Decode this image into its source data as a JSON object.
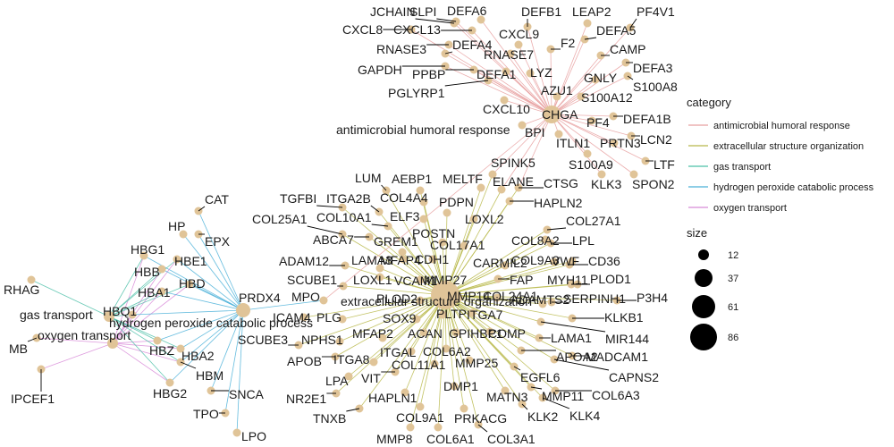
{
  "categories": {
    "amh": {
      "name": "antimicrobial humoral response",
      "color": "#e8a0a0"
    },
    "eso": {
      "name": "extracellular structure organization",
      "color": "#b8b84a"
    },
    "gas": {
      "name": "gas transport",
      "color": "#4cc0a8"
    },
    "h2o2": {
      "name": "hydrogen peroxide catabolic process",
      "color": "#4ab0d8"
    },
    "oxy": {
      "name": "oxygen transport",
      "color": "#d88ad8"
    }
  },
  "legend": {
    "category_title": "category",
    "size_title": "size",
    "size_values": [
      "12",
      "37",
      "61",
      "86"
    ]
  },
  "colors": {
    "node": "#e0c498",
    "label_line": "#000000"
  },
  "hubs": [
    {
      "id": "amh",
      "label": "antimicrobial humoral response",
      "size": 37
    },
    {
      "id": "eso",
      "label": "extracellular structure organization",
      "size": 86
    },
    {
      "id": "h2o2",
      "label": "hydrogen peroxide catabolic process",
      "size": 20
    },
    {
      "id": "gas",
      "label": "gas transport",
      "size": 12
    },
    {
      "id": "oxy",
      "label": "oxygen transport",
      "size": 12
    }
  ],
  "genes": [
    {
      "label": "JCHAIN",
      "cats": [
        "amh"
      ]
    },
    {
      "label": "SLPI",
      "cats": [
        "amh"
      ]
    },
    {
      "label": "DEFA6",
      "cats": [
        "amh"
      ]
    },
    {
      "label": "DEFB1",
      "cats": [
        "amh"
      ]
    },
    {
      "label": "LEAP2",
      "cats": [
        "amh"
      ]
    },
    {
      "label": "PF4V1",
      "cats": [
        "amh"
      ]
    },
    {
      "label": "CXCL8",
      "cats": [
        "amh"
      ]
    },
    {
      "label": "CXCL13",
      "cats": [
        "amh"
      ]
    },
    {
      "label": "CXCL9",
      "cats": [
        "amh"
      ]
    },
    {
      "label": "DEFA5",
      "cats": [
        "amh"
      ]
    },
    {
      "label": "RNASE3",
      "cats": [
        "amh"
      ]
    },
    {
      "label": "DEFA4",
      "cats": [
        "amh"
      ]
    },
    {
      "label": "F2",
      "cats": [
        "amh"
      ]
    },
    {
      "label": "CAMP",
      "cats": [
        "amh"
      ]
    },
    {
      "label": "RNASE7",
      "cats": [
        "amh"
      ]
    },
    {
      "label": "GAPDH",
      "cats": [
        "amh"
      ]
    },
    {
      "label": "PPBP",
      "cats": [
        "amh"
      ]
    },
    {
      "label": "DEFA1",
      "cats": [
        "amh"
      ]
    },
    {
      "label": "LYZ",
      "cats": [
        "amh"
      ]
    },
    {
      "label": "GNLY",
      "cats": [
        "amh"
      ]
    },
    {
      "label": "DEFA3",
      "cats": [
        "amh"
      ]
    },
    {
      "label": "PGLYRP1",
      "cats": [
        "amh"
      ]
    },
    {
      "label": "AZU1",
      "cats": [
        "amh"
      ]
    },
    {
      "label": "S100A8",
      "cats": [
        "amh"
      ]
    },
    {
      "label": "S100A12",
      "cats": [
        "amh"
      ]
    },
    {
      "label": "CXCL10",
      "cats": [
        "amh"
      ]
    },
    {
      "label": "CHGA",
      "cats": [
        "amh"
      ]
    },
    {
      "label": "DEFA1B",
      "cats": [
        "amh"
      ]
    },
    {
      "label": "PF4",
      "cats": [
        "amh"
      ]
    },
    {
      "label": "BPI",
      "cats": [
        "amh"
      ]
    },
    {
      "label": "LCN2",
      "cats": [
        "amh"
      ]
    },
    {
      "label": "ITLN1",
      "cats": [
        "amh"
      ]
    },
    {
      "label": "PRTN3",
      "cats": [
        "amh"
      ]
    },
    {
      "label": "S100A9",
      "cats": [
        "amh"
      ]
    },
    {
      "label": "LTF",
      "cats": [
        "amh"
      ]
    },
    {
      "label": "KLK3",
      "cats": [
        "amh"
      ]
    },
    {
      "label": "SPON2",
      "cats": [
        "amh"
      ]
    },
    {
      "label": "SPINK5",
      "cats": [
        "amh",
        "eso"
      ]
    },
    {
      "label": "MELTF",
      "cats": [
        "eso"
      ]
    },
    {
      "label": "ELANE",
      "cats": [
        "amh",
        "eso"
      ]
    },
    {
      "label": "CTSG",
      "cats": [
        "amh",
        "eso"
      ]
    },
    {
      "label": "HAPLN2",
      "cats": [
        "eso"
      ]
    },
    {
      "label": "LUM",
      "cats": [
        "eso"
      ]
    },
    {
      "label": "AEBP1",
      "cats": [
        "eso"
      ]
    },
    {
      "label": "TGFBI",
      "cats": [
        "eso"
      ]
    },
    {
      "label": "ITGA2B",
      "cats": [
        "eso"
      ]
    },
    {
      "label": "COL4A4",
      "cats": [
        "eso"
      ]
    },
    {
      "label": "PDPN",
      "cats": [
        "eso"
      ]
    },
    {
      "label": "LOXL2",
      "cats": [
        "eso"
      ]
    },
    {
      "label": "COL27A1",
      "cats": [
        "eso"
      ]
    },
    {
      "label": "COL25A1",
      "cats": [
        "eso"
      ]
    },
    {
      "label": "COL10A1",
      "cats": [
        "eso"
      ]
    },
    {
      "label": "ELF3",
      "cats": [
        "eso"
      ]
    },
    {
      "label": "POSTN",
      "cats": [
        "eso"
      ]
    },
    {
      "label": "ABCA7",
      "cats": [
        "eso"
      ]
    },
    {
      "label": "GREM1",
      "cats": [
        "eso"
      ]
    },
    {
      "label": "COL17A1",
      "cats": [
        "eso"
      ]
    },
    {
      "label": "COL8A2",
      "cats": [
        "eso"
      ]
    },
    {
      "label": "LPL",
      "cats": [
        "eso"
      ]
    },
    {
      "label": "ADAM12",
      "cats": [
        "eso"
      ]
    },
    {
      "label": "LAMA3",
      "cats": [
        "eso"
      ]
    },
    {
      "label": "MFAP4",
      "cats": [
        "eso"
      ]
    },
    {
      "label": "CDH1",
      "cats": [
        "eso"
      ]
    },
    {
      "label": "CARMIL2",
      "cats": [
        "eso"
      ]
    },
    {
      "label": "COL9A3",
      "cats": [
        "eso"
      ]
    },
    {
      "label": "VWF",
      "cats": [
        "eso"
      ]
    },
    {
      "label": "CD36",
      "cats": [
        "eso"
      ]
    },
    {
      "label": "SCUBE1",
      "cats": [
        "eso"
      ]
    },
    {
      "label": "LOXL1",
      "cats": [
        "eso"
      ]
    },
    {
      "label": "VCAM1",
      "cats": [
        "eso"
      ]
    },
    {
      "label": "MMP27",
      "cats": [
        "eso"
      ]
    },
    {
      "label": "FAP",
      "cats": [
        "eso"
      ]
    },
    {
      "label": "MYH11",
      "cats": [
        "eso"
      ]
    },
    {
      "label": "PLOD1",
      "cats": [
        "eso"
      ]
    },
    {
      "label": "PRDX4",
      "cats": [
        "h2o2"
      ]
    },
    {
      "label": "MPO",
      "cats": [
        "amh",
        "h2o2"
      ]
    },
    {
      "label": "PLOD2",
      "cats": [
        "eso"
      ]
    },
    {
      "label": "MMP14",
      "cats": [
        "eso"
      ]
    },
    {
      "label": "COL24A1",
      "cats": [
        "eso"
      ]
    },
    {
      "label": "ADAMTS2",
      "cats": [
        "eso"
      ]
    },
    {
      "label": "SERPINH1",
      "cats": [
        "eso"
      ]
    },
    {
      "label": "P3H4",
      "cats": [
        "eso"
      ]
    },
    {
      "label": "ICAM4",
      "cats": [
        "eso"
      ]
    },
    {
      "label": "PLG",
      "cats": [
        "eso"
      ]
    },
    {
      "label": "SOX9",
      "cats": [
        "eso"
      ]
    },
    {
      "label": "PLTP",
      "cats": [
        "eso"
      ]
    },
    {
      "label": "ITGA7",
      "cats": [
        "eso"
      ]
    },
    {
      "label": "KLKB1",
      "cats": [
        "eso"
      ]
    },
    {
      "label": "MIR144",
      "cats": [
        "eso"
      ]
    },
    {
      "label": "SCUBE3",
      "cats": [
        "eso"
      ]
    },
    {
      "label": "NPHS1",
      "cats": [
        "eso"
      ]
    },
    {
      "label": "MFAP2",
      "cats": [
        "eso"
      ]
    },
    {
      "label": "ACAN",
      "cats": [
        "eso"
      ]
    },
    {
      "label": "GPIHBP1",
      "cats": [
        "eso"
      ]
    },
    {
      "label": "COMP",
      "cats": [
        "eso"
      ]
    },
    {
      "label": "LAMA1",
      "cats": [
        "eso"
      ]
    },
    {
      "label": "APOB",
      "cats": [
        "eso"
      ]
    },
    {
      "label": "ITGA8",
      "cats": [
        "eso"
      ]
    },
    {
      "label": "COL6A2",
      "cats": [
        "eso"
      ]
    },
    {
      "label": "ITGAL",
      "cats": [
        "eso"
      ]
    },
    {
      "label": "APOA2",
      "cats": [
        "eso"
      ]
    },
    {
      "label": "MADCAM1",
      "cats": [
        "eso"
      ]
    },
    {
      "label": "CAPNS2",
      "cats": [
        "eso"
      ]
    },
    {
      "label": "LPA",
      "cats": [
        "eso"
      ]
    },
    {
      "label": "VIT",
      "cats": [
        "eso"
      ]
    },
    {
      "label": "COL11A1",
      "cats": [
        "eso"
      ]
    },
    {
      "label": "MMP25",
      "cats": [
        "eso"
      ]
    },
    {
      "label": "EGFL6",
      "cats": [
        "eso"
      ]
    },
    {
      "label": "MMP11",
      "cats": [
        "eso"
      ]
    },
    {
      "label": "COL6A3",
      "cats": [
        "eso"
      ]
    },
    {
      "label": "NR2E1",
      "cats": [
        "eso"
      ]
    },
    {
      "label": "HAPLN1",
      "cats": [
        "eso"
      ]
    },
    {
      "label": "DMP1",
      "cats": [
        "eso"
      ]
    },
    {
      "label": "MATN3",
      "cats": [
        "eso"
      ]
    },
    {
      "label": "KLK4",
      "cats": [
        "eso"
      ]
    },
    {
      "label": "TNXB",
      "cats": [
        "eso"
      ]
    },
    {
      "label": "COL9A1",
      "cats": [
        "eso"
      ]
    },
    {
      "label": "PRKACG",
      "cats": [
        "eso"
      ]
    },
    {
      "label": "KLK2",
      "cats": [
        "eso"
      ]
    },
    {
      "label": "MMP8",
      "cats": [
        "eso"
      ]
    },
    {
      "label": "COL6A1",
      "cats": [
        "eso"
      ]
    },
    {
      "label": "COL3A1",
      "cats": [
        "eso"
      ]
    },
    {
      "label": "CAT",
      "cats": [
        "h2o2"
      ]
    },
    {
      "label": "HP",
      "cats": [
        "h2o2"
      ]
    },
    {
      "label": "EPX",
      "cats": [
        "h2o2"
      ]
    },
    {
      "label": "HBG1",
      "cats": [
        "h2o2",
        "gas",
        "oxy"
      ]
    },
    {
      "label": "HBE1",
      "cats": [
        "h2o2",
        "gas",
        "oxy"
      ]
    },
    {
      "label": "HBB",
      "cats": [
        "h2o2",
        "gas",
        "oxy"
      ]
    },
    {
      "label": "HBD",
      "cats": [
        "h2o2",
        "gas",
        "oxy"
      ]
    },
    {
      "label": "HBA1",
      "cats": [
        "h2o2",
        "gas",
        "oxy"
      ]
    },
    {
      "label": "RHAG",
      "cats": [
        "gas"
      ]
    },
    {
      "label": "HBQ1",
      "cats": [
        "h2o2",
        "gas",
        "oxy"
      ]
    },
    {
      "label": "MB",
      "cats": [
        "oxy"
      ]
    },
    {
      "label": "HBZ",
      "cats": [
        "h2o2",
        "gas",
        "oxy"
      ]
    },
    {
      "label": "HBA2",
      "cats": [
        "h2o2",
        "gas",
        "oxy"
      ]
    },
    {
      "label": "HBM",
      "cats": [
        "h2o2",
        "gas",
        "oxy"
      ]
    },
    {
      "label": "HBG2",
      "cats": [
        "h2o2",
        "gas",
        "oxy"
      ]
    },
    {
      "label": "IPCEF1",
      "cats": [
        "oxy"
      ]
    },
    {
      "label": "SNCA",
      "cats": [
        "h2o2"
      ]
    },
    {
      "label": "TPO",
      "cats": [
        "h2o2"
      ]
    },
    {
      "label": "LPO",
      "cats": [
        "h2o2"
      ]
    }
  ]
}
